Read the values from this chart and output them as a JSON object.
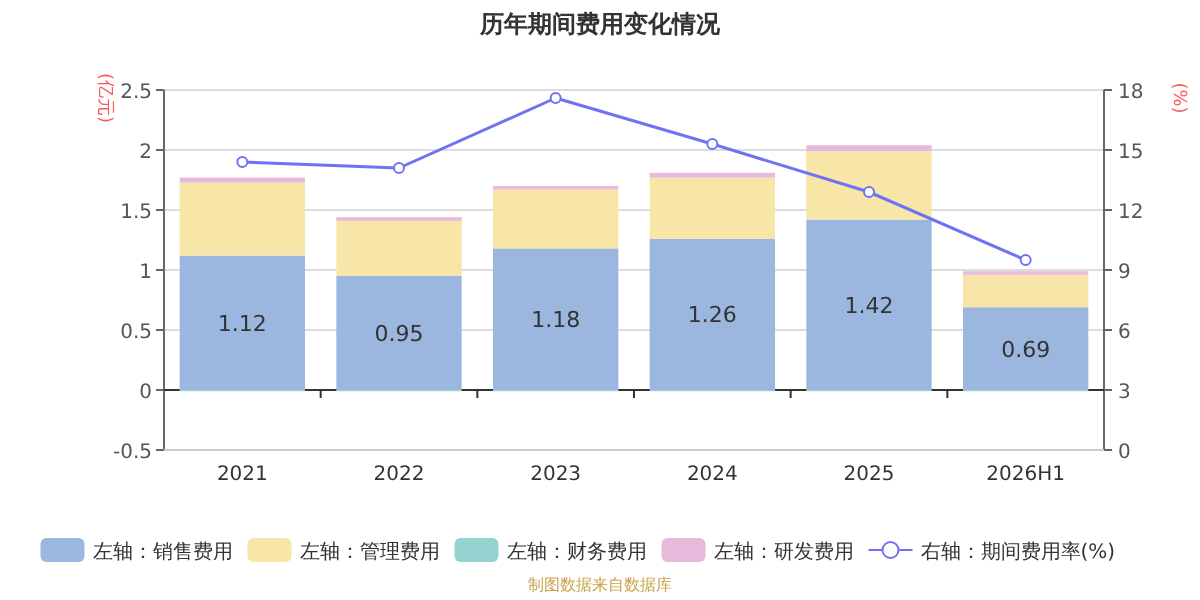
{
  "chart_data": {
    "type": "bar",
    "title": "历年期间费用变化情况",
    "ylabel": "(亿元)",
    "y2label": "(%)",
    "categories": [
      "2021",
      "2022",
      "2023",
      "2024",
      "2025",
      "2026H1"
    ],
    "stacked": true,
    "legend": "bottom",
    "grid": "y",
    "ylim": [
      -0.5,
      2.5
    ],
    "yticks": [
      -0.5,
      0,
      0.5,
      1,
      1.5,
      2,
      2.5
    ],
    "y2lim": [
      0,
      18
    ],
    "y2ticks": [
      0,
      3,
      6,
      9,
      12,
      15,
      18
    ],
    "series": [
      {
        "name": "左轴：销售费用",
        "color": "#9bb7e0",
        "values": [
          1.12,
          0.95,
          1.18,
          1.26,
          1.42,
          0.69
        ],
        "value_labels": [
          "1.12",
          "0.95",
          "1.18",
          "1.26",
          "1.42",
          "0.69"
        ]
      },
      {
        "name": "左轴：管理费用",
        "color": "#f8e6a8",
        "values": [
          0.61,
          0.46,
          0.49,
          0.51,
          0.57,
          0.27
        ]
      },
      {
        "name": "左轴：财务费用",
        "color": "#95d3d1",
        "values": [
          -0.01,
          -0.01,
          -0.01,
          -0.01,
          -0.01,
          -0.01
        ]
      },
      {
        "name": "左轴：研发费用",
        "color": "#e8b9db",
        "values": [
          0.04,
          0.03,
          0.03,
          0.04,
          0.05,
          0.03
        ]
      },
      {
        "name": "右轴：期间费用率(%)",
        "type": "line",
        "axis": "y2",
        "color": "#6f72f5",
        "marker": "circle",
        "values": [
          14.4,
          14.1,
          17.6,
          15.3,
          12.9,
          9.5
        ]
      }
    ],
    "annotations": [
      "制图数据来自数据库"
    ]
  }
}
